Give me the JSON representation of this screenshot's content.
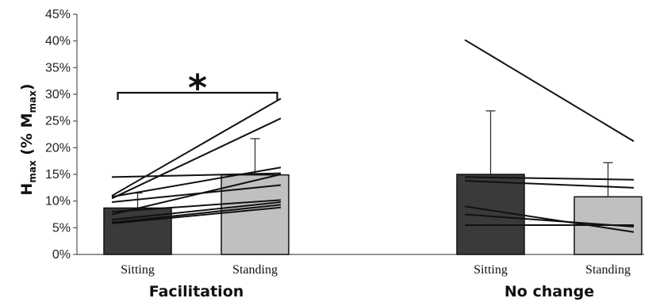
{
  "chart_data": {
    "type": "bar",
    "ylabel": {
      "main": "H",
      "sub1": "max",
      "mid": " (% M",
      "sub2": "max",
      "end": ")"
    },
    "ylim": [
      0,
      45
    ],
    "yticks": [
      "0%",
      "5%",
      "10%",
      "15%",
      "20%",
      "25%",
      "30%",
      "35%",
      "40%",
      "45%"
    ],
    "yticks_values": [
      0,
      5,
      10,
      15,
      20,
      25,
      30,
      35,
      40,
      45
    ],
    "grid": false,
    "groups": [
      {
        "name": "Facilitation",
        "significance": "*",
        "bars": [
          {
            "category": "Sitting",
            "value": 8.7,
            "error": 2.8,
            "color": "#3a3a3a"
          },
          {
            "category": "Standing",
            "value": 14.9,
            "error": 6.8,
            "color": "#c0c0c0"
          }
        ],
        "subjects": [
          [
            11.0,
            29.2
          ],
          [
            10.5,
            25.5
          ],
          [
            14.5,
            15.2
          ],
          [
            10.8,
            16.3
          ],
          [
            9.8,
            13.0
          ],
          [
            7.5,
            15.0
          ],
          [
            8.0,
            10.2
          ],
          [
            6.5,
            9.8
          ],
          [
            6.0,
            9.3
          ],
          [
            5.8,
            8.8
          ]
        ]
      },
      {
        "name": "No change",
        "significance": "",
        "bars": [
          {
            "category": "Sitting",
            "value": 15.0,
            "error": 11.9,
            "color": "#3a3a3a"
          },
          {
            "category": "Standing",
            "value": 10.8,
            "error": 6.4,
            "color": "#c0c0c0"
          }
        ],
        "subjects": [
          [
            40.2,
            21.2
          ],
          [
            14.5,
            14.0
          ],
          [
            13.8,
            12.5
          ],
          [
            9.0,
            4.2
          ],
          [
            7.5,
            5.2
          ],
          [
            5.5,
            5.5
          ]
        ]
      }
    ]
  }
}
